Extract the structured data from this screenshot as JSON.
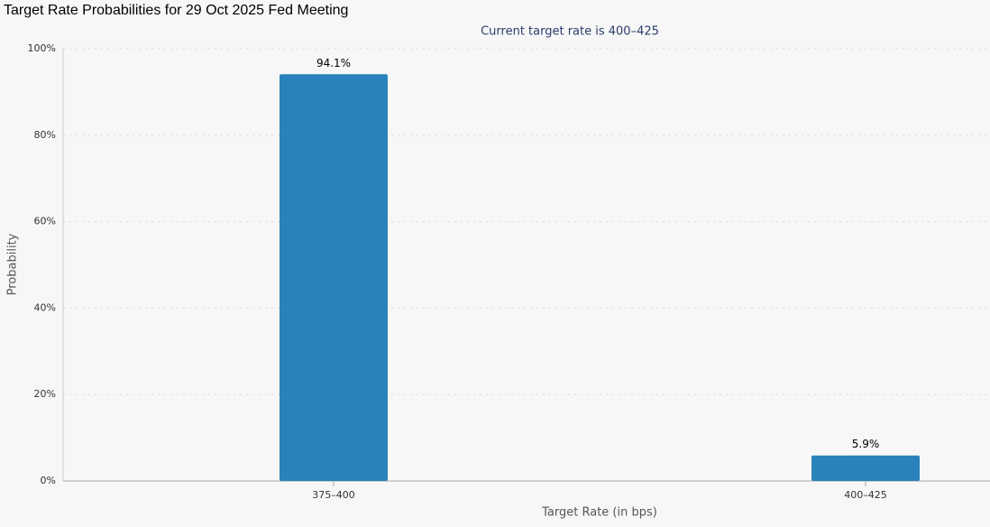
{
  "chart_data": {
    "type": "bar",
    "title": "Target Rate Probabilities for 29 Oct 2025 Fed Meeting",
    "subtitle": "Current target rate is 400–425",
    "x_label": "Target Rate (in bps)",
    "y_label": "Probability",
    "categories": [
      "375–400",
      "400–425"
    ],
    "values": [
      94.1,
      5.9
    ],
    "value_labels": [
      "94.1%",
      "5.9%"
    ],
    "color": "#2a82ba",
    "ylim": [
      0,
      100
    ],
    "yticks": [
      {
        "value": 0,
        "label": "0%"
      },
      {
        "value": 20,
        "label": "20%"
      },
      {
        "value": 40,
        "label": "40%"
      },
      {
        "value": 60,
        "label": "60%"
      },
      {
        "value": 80,
        "label": "80%"
      },
      {
        "value": 100,
        "label": "100%"
      }
    ],
    "grid": true
  }
}
